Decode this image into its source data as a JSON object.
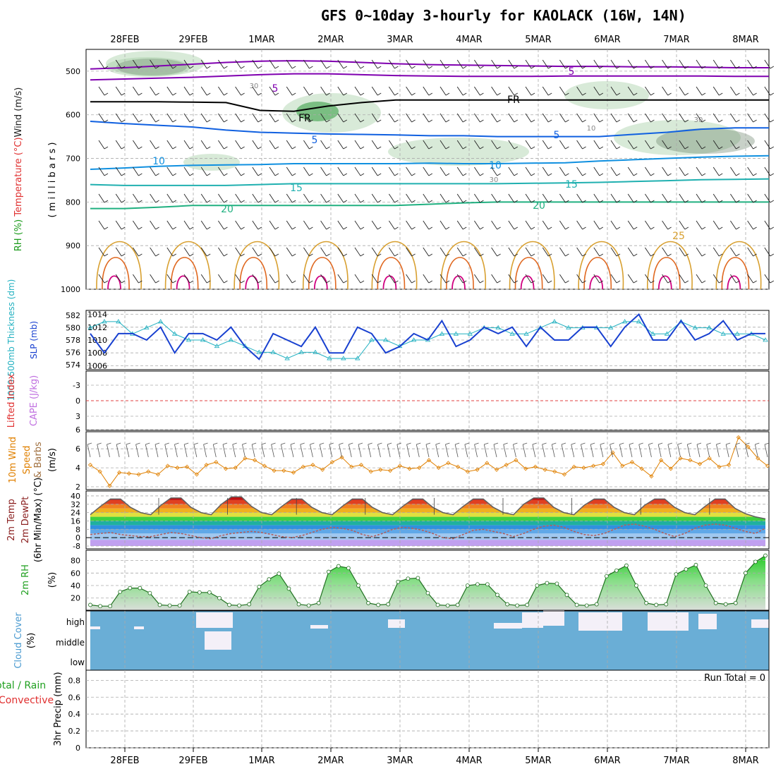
{
  "title": "GFS 0~10day 3-hourly for KAOLACK (16W, 14N)",
  "x_axis": {
    "tick_labels": [
      "28FEB",
      "29FEB",
      "1MAR",
      "2MAR",
      "3MAR",
      "4MAR",
      "5MAR",
      "6MAR",
      "7MAR",
      "8MAR"
    ]
  },
  "chart_data": [
    {
      "panel": "upper-air",
      "type": "heatmap",
      "ylabel_parts": [
        "RH (%)",
        "Temperature (°C)",
        "Wind (m/s)",
        "( m i l l i b a r s )"
      ],
      "yticks": [
        500,
        600,
        700,
        800,
        900,
        1000
      ],
      "ylim": [
        1000,
        450
      ],
      "contour_labels": [
        "5",
        "5",
        "FR",
        "FR",
        "5",
        "10",
        "10",
        "15",
        "15",
        "20",
        "20",
        "25",
        "5",
        "30",
        "30",
        "10",
        "30"
      ],
      "isotherms": [
        {
          "label": "-5",
          "color": "#8000b0",
          "y": [
            495,
            492,
            488,
            484,
            480,
            477,
            476,
            477,
            480,
            483,
            485,
            486,
            487,
            488,
            489,
            489,
            490,
            490,
            491,
            492,
            492
          ]
        },
        {
          "label": "-5",
          "color": "#8000b0",
          "y": [
            520,
            518,
            516,
            514,
            511,
            508,
            506,
            506,
            508,
            510,
            511,
            512,
            512,
            512,
            511,
            511,
            511,
            511,
            511,
            512,
            512
          ]
        },
        {
          "label": "FR",
          "color": "#000000",
          "y": [
            570,
            570,
            570,
            571,
            572,
            590,
            592,
            580,
            572,
            566,
            566,
            566,
            566,
            566,
            566,
            566,
            566,
            566,
            566,
            566,
            566
          ]
        },
        {
          "label": "5",
          "color": "#1060e0",
          "y": [
            615,
            620,
            624,
            628,
            635,
            640,
            642,
            644,
            645,
            646,
            648,
            648,
            650,
            650,
            650,
            650,
            645,
            640,
            633,
            630,
            630
          ]
        },
        {
          "label": "10",
          "color": "#1090e0",
          "y": [
            725,
            722,
            718,
            716,
            715,
            714,
            712,
            712,
            712,
            712,
            711,
            712,
            712,
            711,
            710,
            706,
            703,
            700,
            697,
            695,
            694
          ]
        },
        {
          "label": "15",
          "color": "#20b0b0",
          "y": [
            760,
            762,
            762,
            762,
            762,
            760,
            758,
            758,
            758,
            758,
            758,
            758,
            758,
            757,
            756,
            755,
            753,
            751,
            749,
            748,
            747
          ]
        },
        {
          "label": "20",
          "color": "#20b080",
          "y": [
            815,
            815,
            812,
            808,
            808,
            808,
            808,
            808,
            808,
            808,
            805,
            802,
            800,
            800,
            800,
            800,
            800,
            800,
            800,
            800,
            800
          ]
        }
      ]
    },
    {
      "panel": "sfc-pressure-thickness",
      "type": "line",
      "ylabel_left": "1000-500mb Thickness (dm)",
      "ylabel_right": "SLP (mb)",
      "left_ticks": [
        574,
        576,
        578,
        580,
        582
      ],
      "right_ticks": [
        1006,
        1008,
        1010,
        1012,
        1014
      ],
      "series": [
        {
          "name": "Thickness (dm)",
          "color": "#20b0c0",
          "values": [
            580,
            581,
            581,
            579,
            580,
            581,
            579,
            578,
            578,
            577,
            578,
            577,
            576,
            576,
            575,
            576,
            576,
            575,
            575,
            575,
            578,
            578,
            577,
            578,
            578,
            579,
            579,
            579,
            580,
            580,
            579,
            579,
            580,
            581,
            580,
            580,
            580,
            580,
            581,
            581,
            579,
            579,
            581,
            580,
            580,
            579,
            579,
            579,
            578
          ]
        },
        {
          "name": "SLP (mb)",
          "color": "#1840d0",
          "values": [
            1011,
            1008,
            1011,
            1011,
            1010,
            1012,
            1008,
            1011,
            1011,
            1010,
            1012,
            1009,
            1007,
            1011,
            1010,
            1009,
            1012,
            1008,
            1008,
            1012,
            1011,
            1008,
            1009,
            1011,
            1010,
            1013,
            1009,
            1010,
            1012,
            1011,
            1012,
            1009,
            1012,
            1010,
            1010,
            1012,
            1012,
            1009,
            1012,
            1014,
            1010,
            1010,
            1013,
            1010,
            1011,
            1013,
            1010,
            1011,
            1011
          ]
        }
      ]
    },
    {
      "panel": "stability",
      "type": "line",
      "ylabel_left": "Lifted Index",
      "ylabel_right": "CAPE (J/kg)",
      "yticks": [
        "-3",
        "0",
        "3",
        "6"
      ],
      "series": []
    },
    {
      "panel": "10m-wind",
      "type": "line",
      "ylabel_parts": [
        "10m Wind",
        "Speed",
        "& Barbs",
        "(m/s)"
      ],
      "yticks": [
        2,
        4,
        6
      ],
      "series": [
        {
          "name": "10m wind speed",
          "color": "#e08000",
          "values": [
            4.3,
            3.6,
            2.1,
            3.5,
            3.4,
            3.3,
            3.6,
            3.3,
            4.2,
            4.0,
            4.1,
            3.3,
            4.3,
            4.6,
            3.9,
            4.0,
            5.0,
            4.8,
            4.2,
            3.7,
            3.7,
            3.5,
            4.1,
            4.3,
            3.8,
            4.6,
            5.1,
            4.1,
            4.3,
            3.6,
            3.8,
            3.7,
            4.2,
            3.9,
            4.0,
            4.8,
            4.0,
            4.5,
            4.1,
            3.6,
            3.8,
            4.5,
            3.8,
            4.3,
            4.8,
            3.9,
            4.1,
            3.8,
            3.6,
            3.3,
            4.1,
            4.0,
            4.2,
            4.4,
            5.6,
            4.2,
            4.6,
            3.9,
            3.1,
            4.8,
            3.9,
            5.0,
            4.8,
            4.4,
            5.0,
            4.1,
            4.3,
            7.2,
            6.2,
            5.0,
            4.2
          ]
        }
      ]
    },
    {
      "panel": "2m-temp-dewpt",
      "type": "area",
      "ylabel_parts": [
        "2m Temp",
        "2m DewPt",
        "(6hr Min/Max) (°C)"
      ],
      "yticks": [
        -8,
        0,
        8,
        16,
        24,
        32,
        40
      ],
      "series": [
        {
          "name": "2m Temp",
          "color": "#8b0000",
          "values": [
            22,
            30,
            37,
            37,
            29,
            24,
            22,
            31,
            38,
            38,
            29,
            24,
            22,
            32,
            39,
            39,
            30,
            24,
            22,
            30,
            37,
            37,
            29,
            24,
            22,
            30,
            37,
            37,
            29,
            24,
            22,
            30,
            37,
            37,
            29,
            24,
            22,
            30,
            37,
            37,
            29,
            24,
            22,
            32,
            38,
            38,
            29,
            24,
            22,
            31,
            37,
            37,
            29,
            24,
            22,
            31,
            37,
            37,
            29,
            24,
            22,
            30,
            37,
            37,
            28,
            23,
            20,
            18
          ]
        },
        {
          "name": "2m DewPt",
          "color": "#b06060",
          "values": [
            3,
            4,
            5,
            3,
            2,
            1,
            1,
            3,
            5,
            4,
            2,
            0,
            -1,
            2,
            4,
            5,
            6,
            5,
            3,
            1,
            0,
            2,
            5,
            8,
            10,
            9,
            7,
            3,
            1,
            4,
            8,
            10,
            9,
            7,
            4,
            0,
            -1,
            3,
            7,
            8,
            6,
            4,
            1,
            4,
            8,
            11,
            12,
            10,
            6,
            3,
            2,
            4,
            8,
            12,
            13,
            11,
            8,
            4,
            1,
            4,
            9,
            12,
            13,
            12,
            9,
            6,
            4,
            9
          ]
        }
      ]
    },
    {
      "panel": "2m-rh",
      "type": "area",
      "ylabel_parts": [
        "2m RH",
        "(%)"
      ],
      "yticks": [
        20,
        40,
        60,
        80
      ],
      "series": [
        {
          "name": "2m RH",
          "color": "#209020",
          "values": [
            9,
            7,
            7,
            30,
            36,
            36,
            28,
            9,
            8,
            8,
            30,
            29,
            29,
            20,
            9,
            8,
            10,
            38,
            50,
            59,
            35,
            10,
            8,
            12,
            62,
            71,
            68,
            40,
            12,
            9,
            10,
            46,
            51,
            52,
            28,
            9,
            8,
            9,
            40,
            42,
            42,
            25,
            10,
            8,
            9,
            40,
            44,
            43,
            25,
            9,
            8,
            10,
            55,
            64,
            72,
            40,
            12,
            9,
            10,
            58,
            66,
            73,
            40,
            12,
            10,
            12,
            60,
            78,
            88
          ]
        }
      ]
    },
    {
      "panel": "cloud-cover",
      "type": "heatmap",
      "ylabel_parts": [
        "Cloud Cover",
        "(%)"
      ],
      "ytick_labels": [
        "high",
        "middle",
        "low"
      ]
    },
    {
      "panel": "precip",
      "type": "bar",
      "ylabel_left": "Total / Rain",
      "ylabel_left2": "Convective",
      "ylabel_right": "3hr Precip (mm)",
      "yticks": [
        "0",
        "0.2",
        "0.4",
        "0.6",
        "0.8"
      ],
      "run_total": "Run Total = 0",
      "values": []
    }
  ]
}
